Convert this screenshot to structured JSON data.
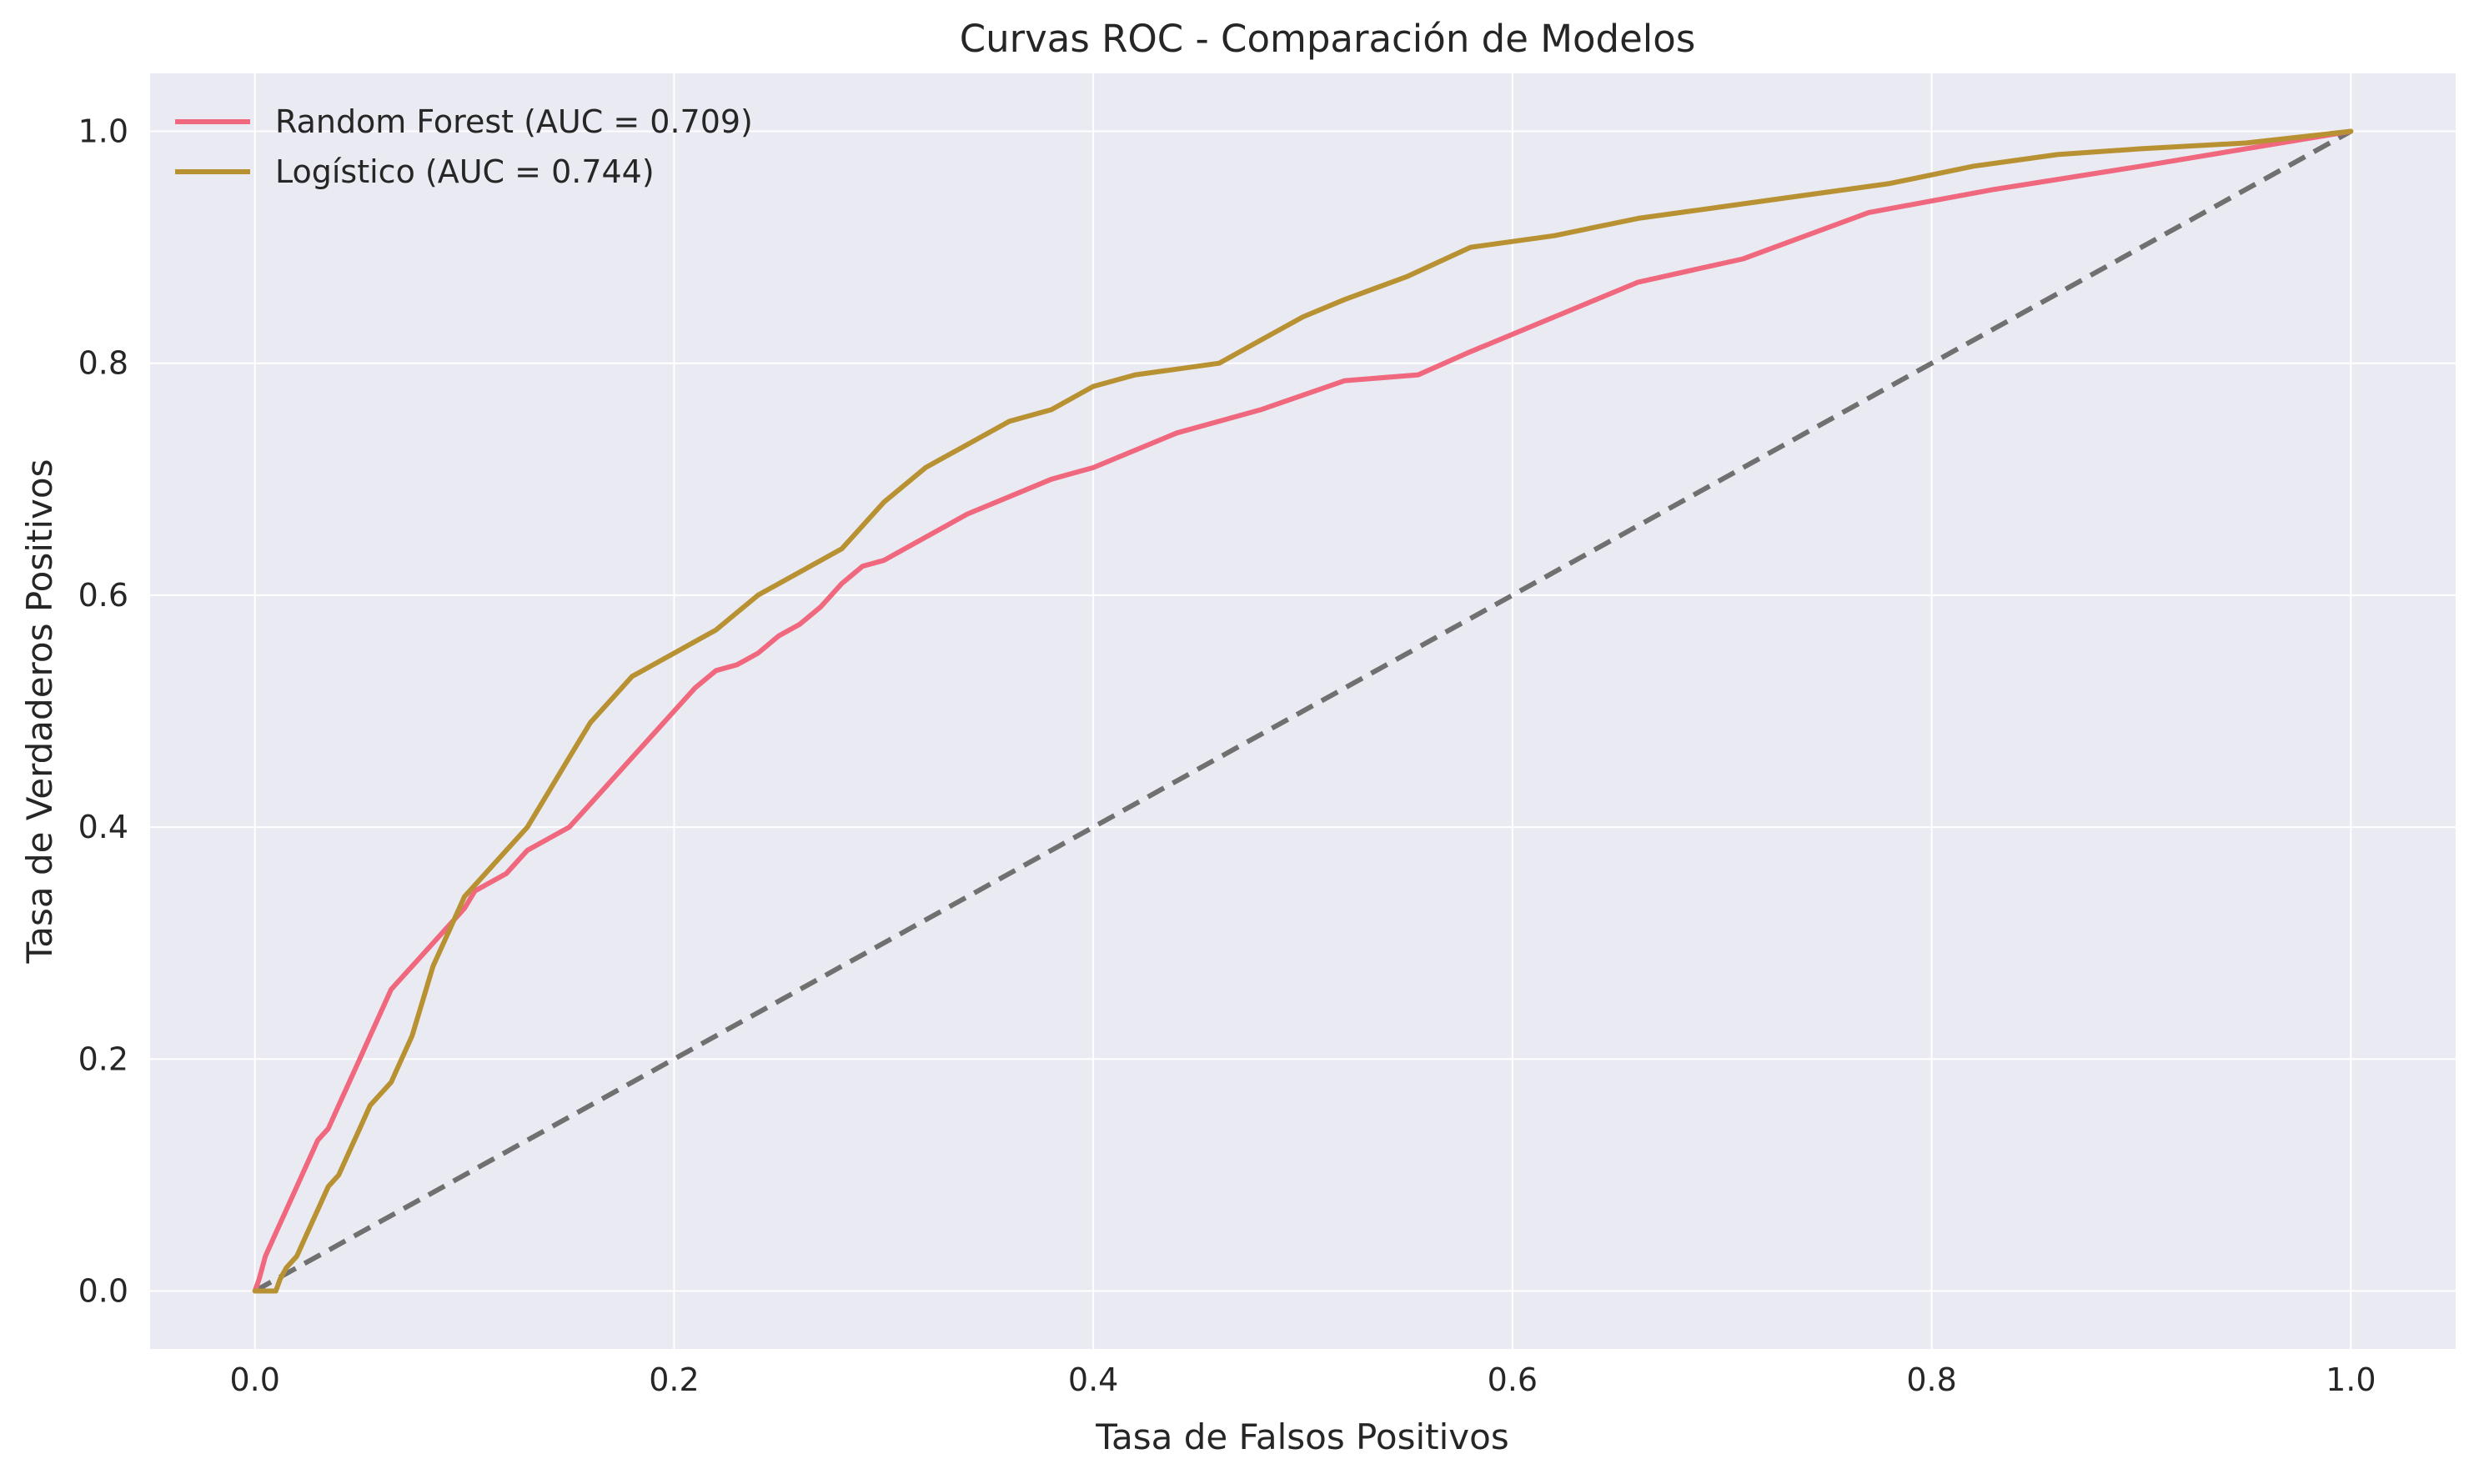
{
  "chart_data": {
    "type": "line",
    "title": "Curvas ROC - Comparación de Modelos",
    "xlabel": "Tasa de Falsos Positivos",
    "ylabel": "Tasa de Verdaderos Positivos",
    "xlim": [
      -0.05,
      1.05
    ],
    "ylim": [
      -0.05,
      1.05
    ],
    "xticks": [
      "0.0",
      "0.2",
      "0.4",
      "0.6",
      "0.8",
      "1.0"
    ],
    "yticks": [
      "0.0",
      "0.2",
      "0.4",
      "0.6",
      "0.8",
      "1.0"
    ],
    "grid": true,
    "legend_position": "top-left",
    "series": [
      {
        "name": "Random Forest (AUC = 0.709)",
        "color": "#f0687e",
        "x": [
          0.0,
          0.002,
          0.005,
          0.01,
          0.015,
          0.02,
          0.025,
          0.03,
          0.035,
          0.04,
          0.045,
          0.05,
          0.055,
          0.06,
          0.065,
          0.07,
          0.075,
          0.08,
          0.085,
          0.09,
          0.1,
          0.105,
          0.11,
          0.12,
          0.13,
          0.15,
          0.16,
          0.17,
          0.18,
          0.19,
          0.2,
          0.21,
          0.22,
          0.23,
          0.24,
          0.25,
          0.26,
          0.27,
          0.28,
          0.29,
          0.3,
          0.32,
          0.34,
          0.36,
          0.38,
          0.4,
          0.42,
          0.44,
          0.48,
          0.52,
          0.555,
          0.58,
          0.62,
          0.66,
          0.71,
          0.77,
          0.83,
          0.9,
          0.95,
          1.0
        ],
        "y": [
          0.0,
          0.01,
          0.03,
          0.05,
          0.07,
          0.09,
          0.11,
          0.13,
          0.14,
          0.16,
          0.18,
          0.2,
          0.22,
          0.24,
          0.26,
          0.27,
          0.28,
          0.29,
          0.3,
          0.31,
          0.33,
          0.345,
          0.35,
          0.36,
          0.38,
          0.4,
          0.42,
          0.44,
          0.46,
          0.48,
          0.5,
          0.52,
          0.535,
          0.54,
          0.55,
          0.565,
          0.575,
          0.59,
          0.61,
          0.625,
          0.63,
          0.65,
          0.67,
          0.685,
          0.7,
          0.71,
          0.725,
          0.74,
          0.76,
          0.785,
          0.79,
          0.81,
          0.84,
          0.87,
          0.89,
          0.93,
          0.95,
          0.97,
          0.985,
          1.0
        ]
      },
      {
        "name": "Logístico (AUC = 0.744)",
        "color": "#b89232",
        "x": [
          0.0,
          0.01,
          0.012,
          0.015,
          0.02,
          0.025,
          0.03,
          0.035,
          0.04,
          0.045,
          0.05,
          0.055,
          0.06,
          0.065,
          0.07,
          0.075,
          0.08,
          0.085,
          0.09,
          0.095,
          0.1,
          0.11,
          0.12,
          0.13,
          0.14,
          0.15,
          0.16,
          0.17,
          0.18,
          0.19,
          0.2,
          0.21,
          0.22,
          0.24,
          0.26,
          0.28,
          0.3,
          0.32,
          0.34,
          0.36,
          0.38,
          0.4,
          0.42,
          0.44,
          0.46,
          0.48,
          0.5,
          0.52,
          0.55,
          0.58,
          0.62,
          0.66,
          0.7,
          0.74,
          0.78,
          0.82,
          0.86,
          0.9,
          0.95,
          1.0
        ],
        "y": [
          0.0,
          0.0,
          0.01,
          0.02,
          0.03,
          0.05,
          0.07,
          0.09,
          0.1,
          0.12,
          0.14,
          0.16,
          0.17,
          0.18,
          0.2,
          0.22,
          0.25,
          0.28,
          0.3,
          0.32,
          0.34,
          0.36,
          0.38,
          0.4,
          0.43,
          0.46,
          0.49,
          0.51,
          0.53,
          0.54,
          0.55,
          0.56,
          0.57,
          0.6,
          0.62,
          0.64,
          0.68,
          0.71,
          0.73,
          0.75,
          0.76,
          0.78,
          0.79,
          0.795,
          0.8,
          0.82,
          0.84,
          0.855,
          0.875,
          0.9,
          0.91,
          0.925,
          0.935,
          0.945,
          0.955,
          0.97,
          0.98,
          0.985,
          0.99,
          1.0
        ]
      }
    ],
    "reference_line": {
      "x": [
        0,
        1
      ],
      "y": [
        0,
        1
      ],
      "color": "#707070",
      "style": "dashed"
    }
  },
  "colors": {
    "plot_background": "#eaeaf2",
    "grid": "#ffffff",
    "text": "#262626"
  }
}
